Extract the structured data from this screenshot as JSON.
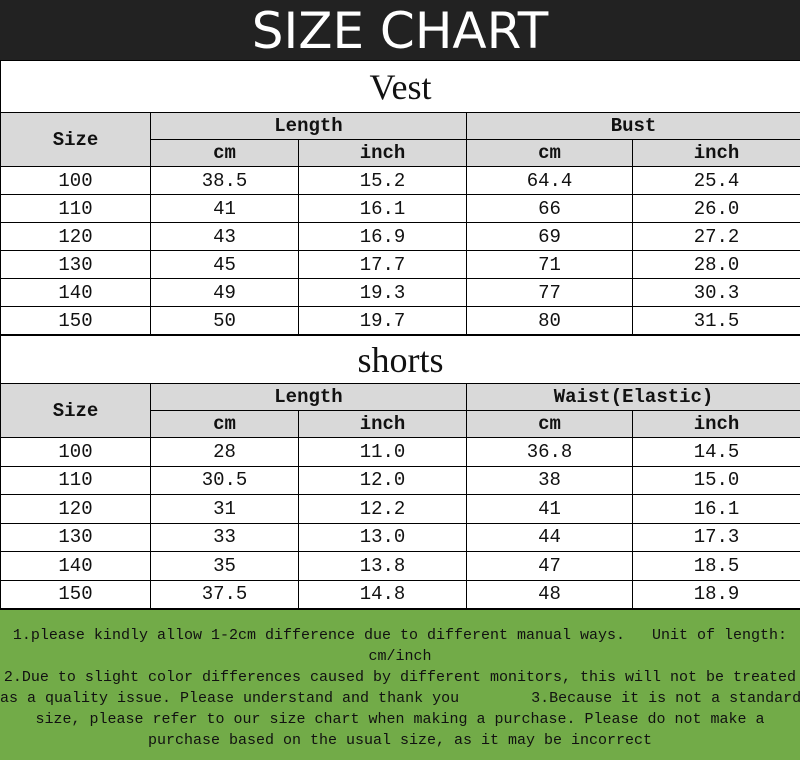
{
  "header": {
    "title": "SIZE CHART"
  },
  "sections": [
    {
      "title": "Vest",
      "size_header": "Size",
      "groups": [
        {
          "label": "Length",
          "units": [
            "cm",
            "inch"
          ]
        },
        {
          "label": "Bust",
          "units": [
            "cm",
            "inch"
          ]
        }
      ],
      "rows": [
        [
          "100",
          "38.5",
          "15.2",
          "64.4",
          "25.4"
        ],
        [
          "110",
          "41",
          "16.1",
          "66",
          "26.0"
        ],
        [
          "120",
          "43",
          "16.9",
          "69",
          "27.2"
        ],
        [
          "130",
          "45",
          "17.7",
          "71",
          "28.0"
        ],
        [
          "140",
          "49",
          "19.3",
          "77",
          "30.3"
        ],
        [
          "150",
          "50",
          "19.7",
          "80",
          "31.5"
        ]
      ]
    },
    {
      "title": "shorts",
      "size_header": "Size",
      "groups": [
        {
          "label": "Length",
          "units": [
            "cm",
            "inch"
          ]
        },
        {
          "label": "Waist(Elastic)",
          "units": [
            "cm",
            "inch"
          ]
        }
      ],
      "rows": [
        [
          "100",
          "28",
          "11.0",
          "36.8",
          "14.5"
        ],
        [
          "110",
          "30.5",
          "12.0",
          "38",
          "15.0"
        ],
        [
          "120",
          "31",
          "12.2",
          "41",
          "16.1"
        ],
        [
          "130",
          "33",
          "13.0",
          "44",
          "17.3"
        ],
        [
          "140",
          "35",
          "13.8",
          "47",
          "18.5"
        ],
        [
          "150",
          "37.5",
          "14.8",
          "48",
          "18.9"
        ]
      ]
    }
  ],
  "notes": [
    "1.please kindly allow 1-2cm difference due to different manual ways.   Unit of length:",
    "cm/inch",
    "2.Due to slight color differences caused by different monitors, this will not be treated",
    "as a quality issue. Please understand and thank you        3.Because it is not a standard",
    "size, please refer to our size chart when making a purchase. Please do not make a",
    "purchase based on the usual size, as it may be incorrect"
  ]
}
